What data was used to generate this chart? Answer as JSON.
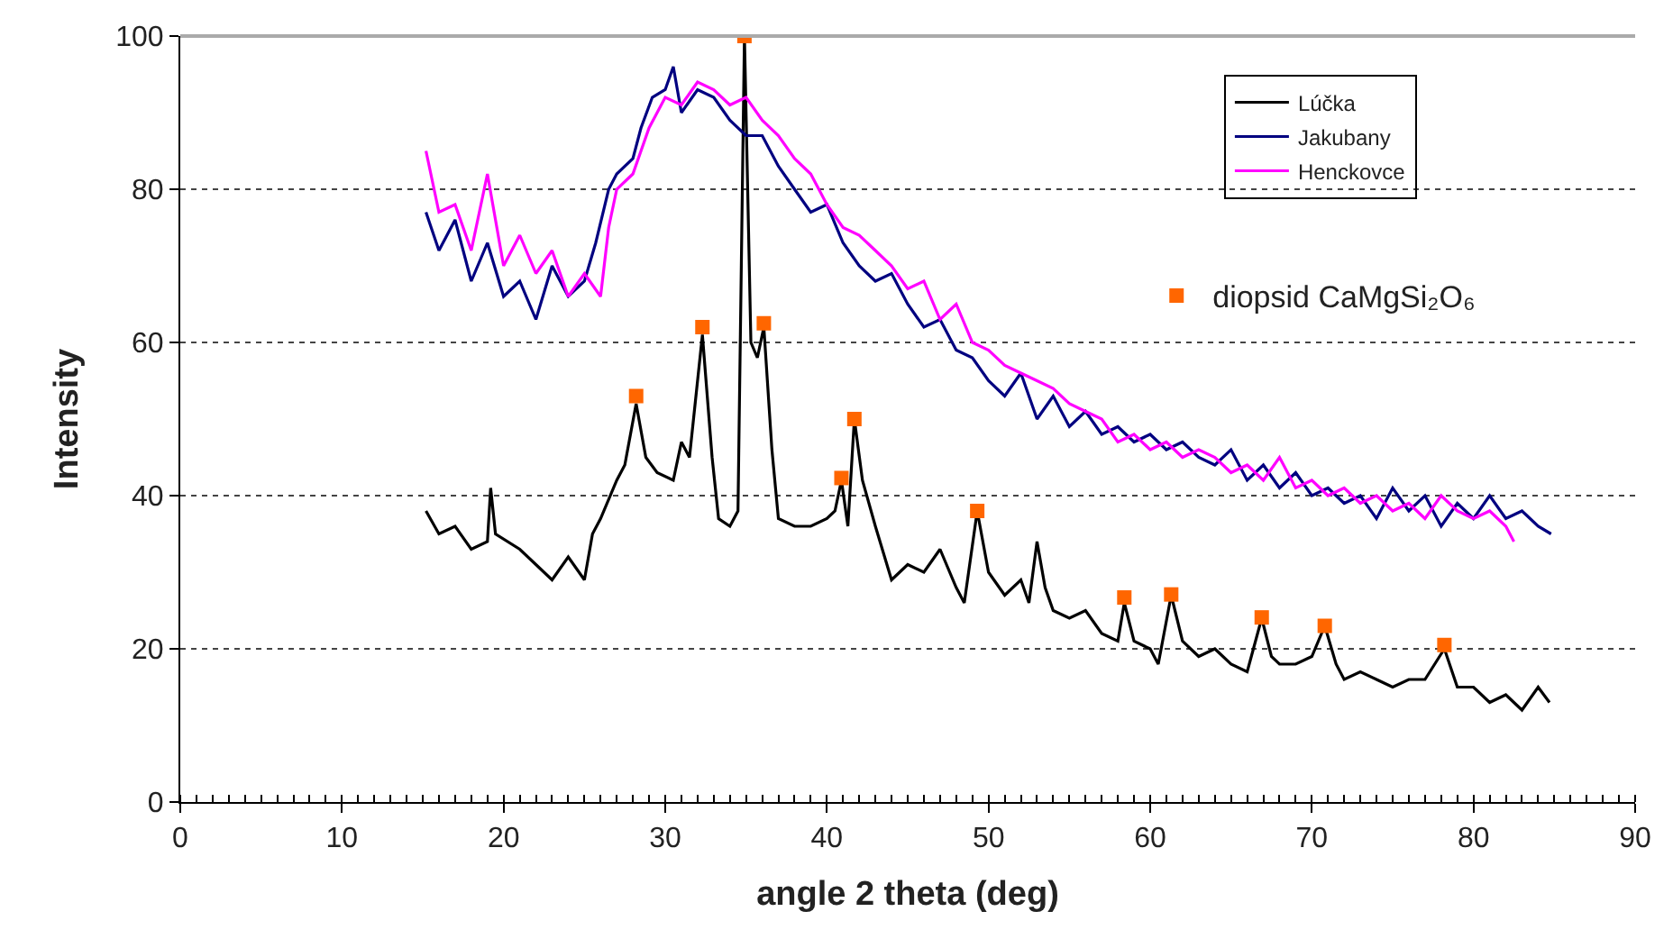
{
  "chart_data": {
    "type": "line",
    "xlabel": "angle 2 theta (deg)",
    "ylabel": "Intensity",
    "xlim": [
      0,
      90
    ],
    "xticks": [
      0,
      10,
      20,
      30,
      40,
      50,
      60,
      70,
      80,
      90
    ],
    "ylim": [
      0,
      100
    ],
    "yticks": [
      0,
      20,
      40,
      60,
      80,
      100
    ],
    "grid": "y",
    "legend": "top right",
    "marker": "none",
    "line_style": "solid",
    "series": [
      {
        "name": "Lúčka",
        "color": "#000000",
        "x": [
          15.2,
          16,
          17,
          18,
          19,
          19.2,
          19.5,
          21,
          22,
          23,
          24,
          25,
          25.5,
          26,
          27,
          27.5,
          28.2,
          28.8,
          29.5,
          30.5,
          31,
          31.5,
          32.3,
          32.9,
          33.3,
          34,
          34.5,
          34.9,
          35.3,
          35.7,
          36.1,
          36.6,
          37,
          38,
          39,
          40,
          40.5,
          40.9,
          41.3,
          41.7,
          42.2,
          43,
          44,
          45,
          46,
          47,
          48,
          48.5,
          49.3,
          50,
          51,
          52,
          52.5,
          53,
          53.5,
          54,
          55,
          56,
          57,
          58,
          58.4,
          59,
          60,
          60.5,
          61.3,
          62,
          63,
          64,
          65,
          66,
          66.9,
          67.5,
          68,
          69,
          70,
          70.8,
          71.5,
          72,
          73,
          74,
          75,
          76,
          77,
          78.2,
          79,
          80,
          81,
          82,
          83,
          84,
          84.7
        ],
        "values": [
          38,
          35,
          36,
          33,
          34,
          41,
          35,
          33,
          31,
          29,
          32,
          29,
          35,
          37,
          42,
          44,
          52,
          45,
          43,
          42,
          47,
          45,
          61,
          45,
          37,
          36,
          38,
          100,
          60,
          58,
          62,
          46,
          37,
          36,
          36,
          37,
          38,
          42,
          36,
          50,
          42,
          36,
          29,
          31,
          30,
          33,
          28,
          26,
          38,
          30,
          27,
          29,
          26,
          34,
          28,
          25,
          24,
          25,
          22,
          21,
          26,
          21,
          20,
          18,
          27,
          21,
          19,
          20,
          18,
          17,
          24,
          19,
          18,
          18,
          19,
          23,
          18,
          16,
          17,
          16,
          15,
          16,
          16,
          20,
          15,
          15,
          13,
          14,
          12,
          15,
          13
        ]
      },
      {
        "name": "Jakubany",
        "color": "#000080",
        "x": [
          15.2,
          16,
          17,
          18,
          19,
          20,
          21,
          22,
          23,
          24,
          25,
          25.7,
          26.5,
          27,
          28,
          28.5,
          29.2,
          30,
          30.5,
          31,
          32,
          33,
          34,
          35,
          36,
          37,
          38,
          39,
          40,
          41,
          42,
          43,
          44,
          45,
          46,
          47,
          48,
          49,
          50,
          51,
          52,
          53,
          54,
          55,
          56,
          57,
          58,
          59,
          60,
          61,
          62,
          63,
          64,
          65,
          66,
          67,
          68,
          69,
          70,
          71,
          72,
          73,
          74,
          75,
          76,
          77,
          78,
          79,
          80,
          81,
          82,
          83,
          84,
          84.8
        ],
        "values": [
          77,
          72,
          76,
          68,
          73,
          66,
          68,
          63,
          70,
          66,
          68,
          73,
          80,
          82,
          84,
          88,
          92,
          93,
          96,
          90,
          93,
          92,
          89,
          87,
          87,
          83,
          80,
          77,
          78,
          73,
          70,
          68,
          69,
          65,
          62,
          63,
          59,
          58,
          55,
          53,
          56,
          50,
          53,
          49,
          51,
          48,
          49,
          47,
          48,
          46,
          47,
          45,
          44,
          46,
          42,
          44,
          41,
          43,
          40,
          41,
          39,
          40,
          37,
          41,
          38,
          40,
          36,
          39,
          37,
          40,
          37,
          38,
          36,
          35
        ]
      },
      {
        "name": "Henckovce",
        "color": "#ff00ff",
        "x": [
          15.2,
          16,
          17,
          18,
          19,
          20,
          21,
          22,
          23,
          24,
          25,
          26,
          26.5,
          27,
          28,
          29,
          30,
          31,
          32,
          33,
          34,
          35,
          36,
          37,
          38,
          39,
          40,
          41,
          42,
          43,
          44,
          45,
          46,
          47,
          48,
          49,
          50,
          51,
          52,
          53,
          54,
          55,
          56,
          57,
          58,
          59,
          60,
          61,
          62,
          63,
          64,
          65,
          66,
          67,
          68,
          69,
          70,
          71,
          72,
          73,
          74,
          75,
          76,
          77,
          78,
          79,
          80,
          81,
          82,
          82.5
        ],
        "values": [
          85,
          77,
          78,
          72,
          82,
          70,
          74,
          69,
          72,
          66,
          69,
          66,
          75,
          80,
          82,
          88,
          92,
          91,
          94,
          93,
          91,
          92,
          89,
          87,
          84,
          82,
          78,
          75,
          74,
          72,
          70,
          67,
          68,
          63,
          65,
          60,
          59,
          57,
          56,
          55,
          54,
          52,
          51,
          50,
          47,
          48,
          46,
          47,
          45,
          46,
          45,
          43,
          44,
          42,
          45,
          41,
          42,
          40,
          41,
          39,
          40,
          38,
          39,
          37,
          40,
          38,
          37,
          38,
          36,
          34
        ]
      },
      {
        "name": "diopsid CaMgSi₂O₆",
        "type": "scatter",
        "marker": "square",
        "color": "#ff6600",
        "x": [
          28.2,
          32.3,
          34.9,
          36.1,
          40.9,
          41.7,
          49.3,
          58.4,
          61.3,
          66.9,
          70.8,
          78.2
        ],
        "values": [
          53,
          62,
          100,
          62.5,
          42.3,
          50,
          38,
          26.7,
          27.1,
          24.1,
          23,
          20.5
        ]
      }
    ]
  }
}
